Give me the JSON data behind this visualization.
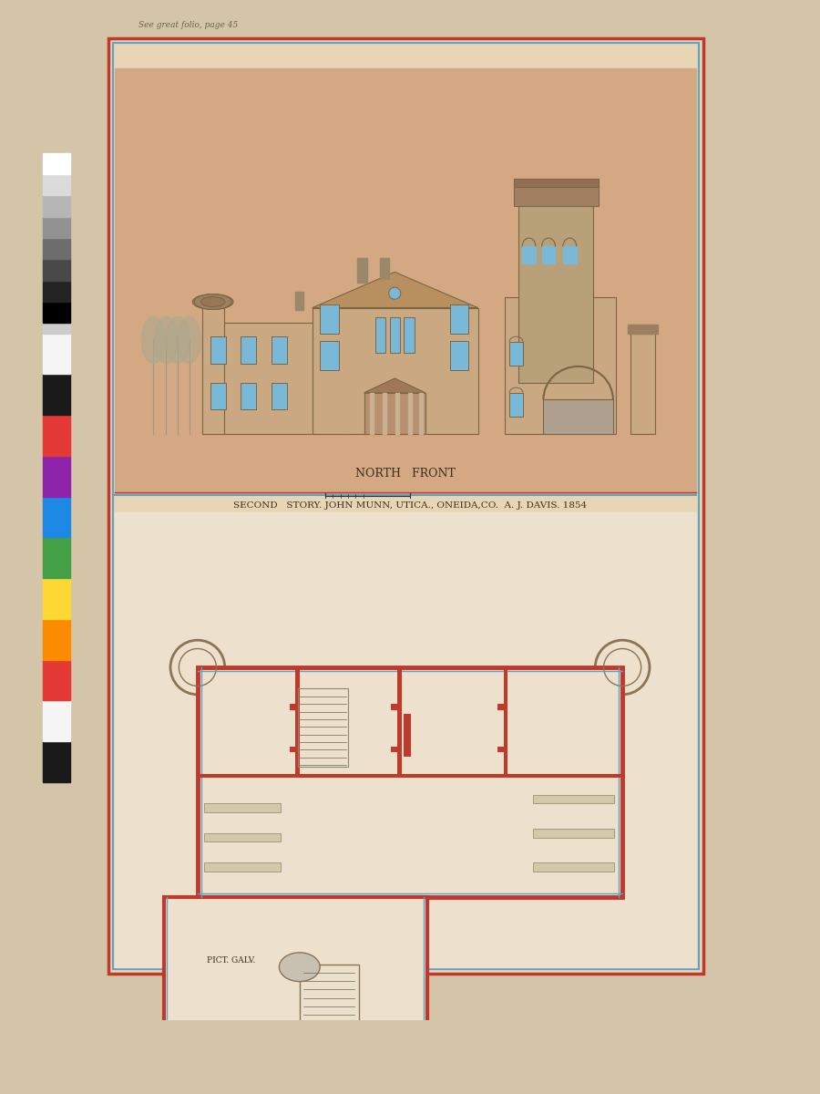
{
  "bg_color": "#d4c4a8",
  "inner_bg": "#e8d5b5",
  "elev_bg": "#d4a882",
  "plan_bg": "#ede0cc",
  "border_outer": "#c0392b",
  "border_inner": "#5ba3c9",
  "title_top": "See great folio, page 45",
  "label_north_front": "NORTH   FRONT",
  "label_second_story": "SECOND   STORY. JOHN MUNN, UTICA., ONEIDA,CO.  A. J. DAVIS. 1854",
  "wall_red": "#c0392b",
  "wall_brown": "#8b7355",
  "wall_tan": "#c9a882",
  "wall_dark": "#7a6644",
  "blue_accent": "#5ba3c9",
  "blue_win": "#7ab8d8",
  "text_color": "#3a3020",
  "dark": "#222222",
  "swatch_colors": [
    "#1a1a1a",
    "#f5f5f5",
    "#e53935",
    "#fb8c00",
    "#fdd835",
    "#43a047",
    "#1e88e5",
    "#8e24aa",
    "#e53935",
    "#1a1a1a",
    "#f5f5f5",
    "#cccccc"
  ]
}
